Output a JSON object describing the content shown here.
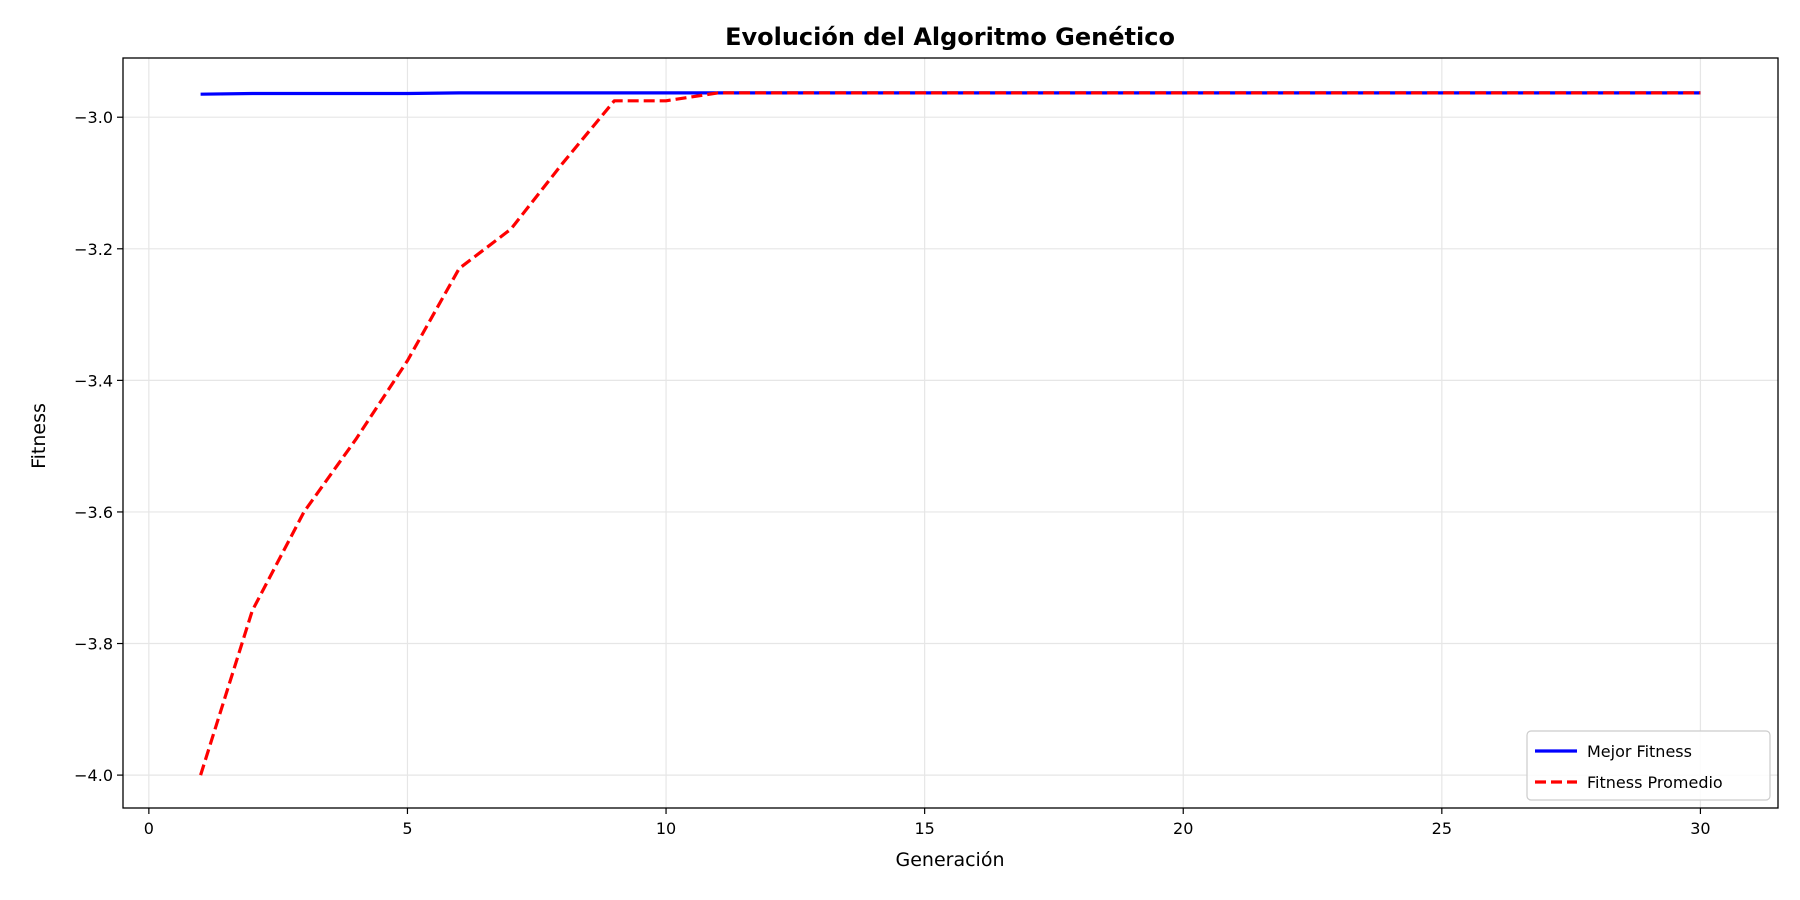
{
  "chart_data": {
    "type": "line",
    "title": "Evolución del Algoritmo Genético",
    "xlabel": "Generación",
    "ylabel": "Fitness",
    "xlim": [
      -0.5,
      31.5
    ],
    "ylim": [
      -4.05,
      -2.91
    ],
    "xticks": [
      0,
      5,
      10,
      15,
      20,
      25,
      30
    ],
    "yticks": [
      -4.0,
      -3.8,
      -3.6,
      -3.4,
      -3.2,
      -3.0
    ],
    "ytick_labels": [
      "−4.0",
      "−3.8",
      "−3.6",
      "−3.4",
      "−3.2",
      "−3.0"
    ],
    "grid": true,
    "legend_position": "lower-right",
    "x": [
      1,
      2,
      3,
      4,
      5,
      6,
      7,
      8,
      9,
      10,
      11,
      12,
      13,
      14,
      15,
      16,
      17,
      18,
      19,
      20,
      21,
      22,
      23,
      24,
      25,
      26,
      27,
      28,
      29,
      30
    ],
    "series": [
      {
        "name": "Mejor Fitness",
        "color": "#0000ff",
        "style": "solid",
        "values": [
          -2.965,
          -2.964,
          -2.964,
          -2.964,
          -2.964,
          -2.963,
          -2.963,
          -2.963,
          -2.963,
          -2.963,
          -2.963,
          -2.963,
          -2.963,
          -2.963,
          -2.963,
          -2.963,
          -2.963,
          -2.963,
          -2.963,
          -2.963,
          -2.963,
          -2.963,
          -2.963,
          -2.963,
          -2.963,
          -2.963,
          -2.963,
          -2.963,
          -2.963,
          -2.963
        ]
      },
      {
        "name": "Fitness Promedio",
        "color": "#ff0000",
        "style": "dashed",
        "values": [
          -4.0,
          -3.75,
          -3.6,
          -3.49,
          -3.37,
          -3.23,
          -3.17,
          -3.07,
          -2.975,
          -2.975,
          -2.963,
          -2.963,
          -2.963,
          -2.963,
          -2.963,
          -2.963,
          -2.963,
          -2.963,
          -2.963,
          -2.963,
          -2.963,
          -2.963,
          -2.963,
          -2.963,
          -2.963,
          -2.963,
          -2.963,
          -2.963,
          -2.963,
          -2.963
        ]
      }
    ]
  }
}
